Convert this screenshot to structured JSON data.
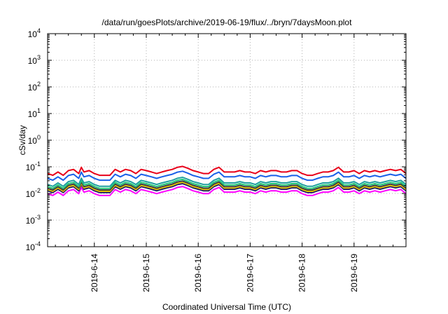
{
  "chart_data": {
    "type": "line",
    "title": "/data/run/goesPlots/archive/2019-06-19/flux/../bryn/7daysMoon.plot",
    "xlabel": "Coordinated Universal Time (UTC)",
    "ylabel": "cSv/day",
    "y_scale": "log",
    "ylim_exponents": [
      -4,
      4
    ],
    "y_tick_exponents": [
      "-4",
      "-3",
      "-2",
      "-1",
      "0",
      "1",
      "2",
      "3",
      "4"
    ],
    "y_tick_base": "10",
    "xlim_days": [
      13.1,
      20.0
    ],
    "x_tick_labels": [
      "2019-6-14",
      "2019-6-15",
      "2019-6-16",
      "2019-6-17",
      "2019-6-18",
      "2019-6-19"
    ],
    "grid": true,
    "legend": "none",
    "x_days": [
      13.1,
      13.2,
      13.3,
      13.4,
      13.5,
      13.6,
      13.7,
      13.75,
      13.8,
      13.9,
      14.0,
      14.1,
      14.2,
      14.3,
      14.4,
      14.5,
      14.6,
      14.7,
      14.8,
      14.9,
      15.0,
      15.1,
      15.2,
      15.3,
      15.4,
      15.5,
      15.6,
      15.7,
      15.8,
      15.9,
      16.0,
      16.1,
      16.2,
      16.3,
      16.4,
      16.5,
      16.6,
      16.7,
      16.8,
      16.9,
      17.0,
      17.1,
      17.2,
      17.3,
      17.4,
      17.5,
      17.6,
      17.7,
      17.8,
      17.9,
      18.0,
      18.1,
      18.2,
      18.3,
      18.4,
      18.5,
      18.6,
      18.7,
      18.8,
      18.9,
      19.0,
      19.1,
      19.2,
      19.3,
      19.4,
      19.5,
      19.6,
      19.7,
      19.8,
      19.9,
      20.0
    ],
    "base_factor": [
      0.035,
      0.03,
      0.04,
      0.03,
      0.045,
      0.05,
      0.035,
      0.06,
      0.04,
      0.045,
      0.035,
      0.03,
      0.03,
      0.03,
      0.05,
      0.04,
      0.05,
      0.045,
      0.035,
      0.05,
      0.045,
      0.04,
      0.035,
      0.04,
      0.045,
      0.05,
      0.06,
      0.065,
      0.055,
      0.045,
      0.04,
      0.035,
      0.035,
      0.05,
      0.06,
      0.04,
      0.04,
      0.04,
      0.045,
      0.04,
      0.04,
      0.035,
      0.045,
      0.04,
      0.045,
      0.045,
      0.04,
      0.04,
      0.045,
      0.045,
      0.035,
      0.03,
      0.03,
      0.035,
      0.04,
      0.04,
      0.045,
      0.06,
      0.04,
      0.04,
      0.045,
      0.035,
      0.045,
      0.04,
      0.045,
      0.04,
      0.045,
      0.05,
      0.045,
      0.05,
      0.035
    ],
    "series": [
      {
        "color": "#e8001a",
        "scale": 1.6
      },
      {
        "color": "#1a60e8",
        "scale": 1.05
      },
      {
        "color": "#20a0a0",
        "scale": 0.62
      },
      {
        "color": "#20c878",
        "scale": 0.52
      },
      {
        "color": "#404040",
        "scale": 0.45
      },
      {
        "color": "#e0c000",
        "scale": 0.4
      },
      {
        "color": "#181868",
        "scale": 0.36
      },
      {
        "color": "#ff00ff",
        "scale": 0.28
      }
    ]
  }
}
